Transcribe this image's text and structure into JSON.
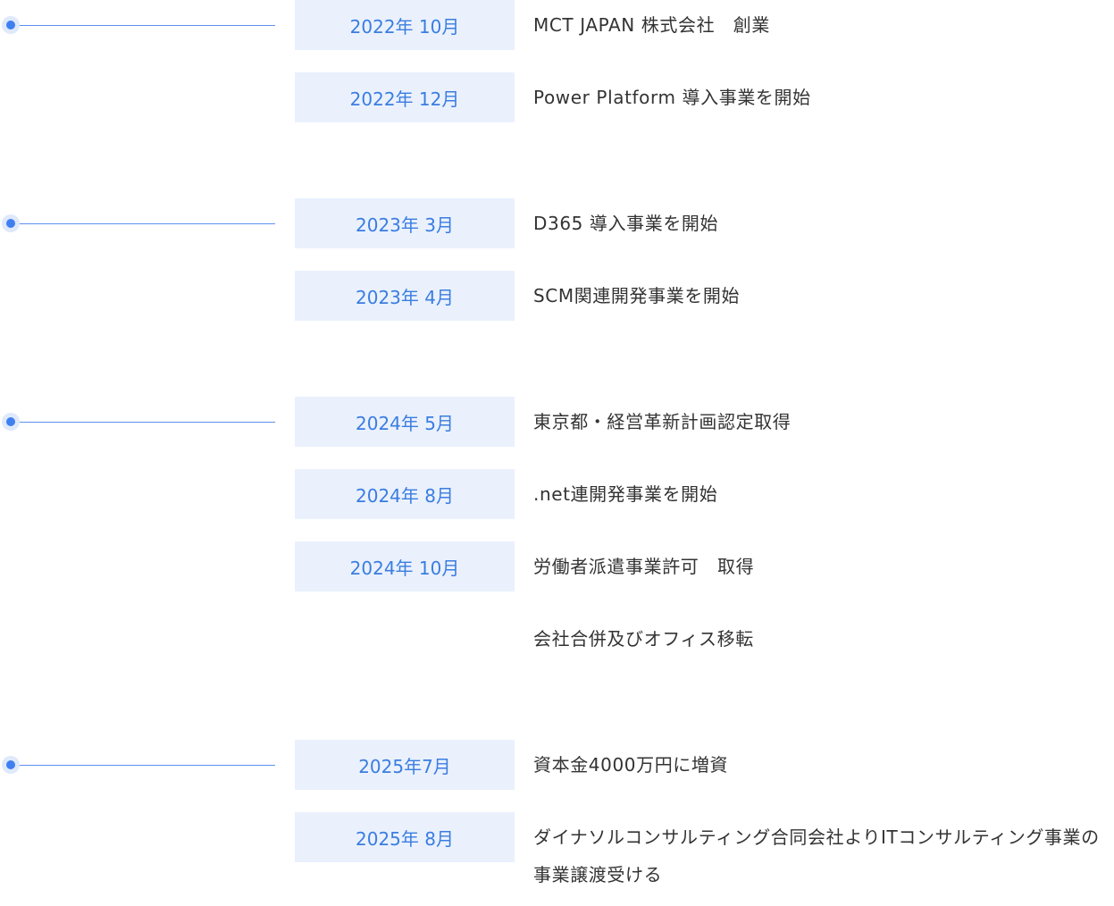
{
  "timeline": {
    "groups": [
      {
        "entries": [
          {
            "date": "2022年 10月",
            "text": "MCT JAPAN 株式会社　創業"
          },
          {
            "date": "2022年 12月",
            "text": "Power Platform 導入事業を開始"
          }
        ]
      },
      {
        "entries": [
          {
            "date": "2023年 3月",
            "text": "D365 導入事業を開始"
          },
          {
            "date": "2023年 4月",
            "text": "SCM関連開発事業を開始"
          }
        ]
      },
      {
        "entries": [
          {
            "date": "2024年 5月",
            "text": "東京都・経営革新計画認定取得"
          },
          {
            "date": "2024年 8月",
            "text": ".net連開発事業を開始"
          },
          {
            "date": "2024年 10月",
            "text": "労働者派遣事業許可　取得"
          },
          {
            "text": "会社合併及びオフィス移転"
          }
        ]
      },
      {
        "entries": [
          {
            "date": "2025年7月",
            "text": "資本金4000万円に増資"
          },
          {
            "date": "2025年 8月",
            "text": "ダイナソルコンサルティング合同会社よりITコンサルティング事業の事業譲渡受ける"
          }
        ]
      }
    ]
  }
}
